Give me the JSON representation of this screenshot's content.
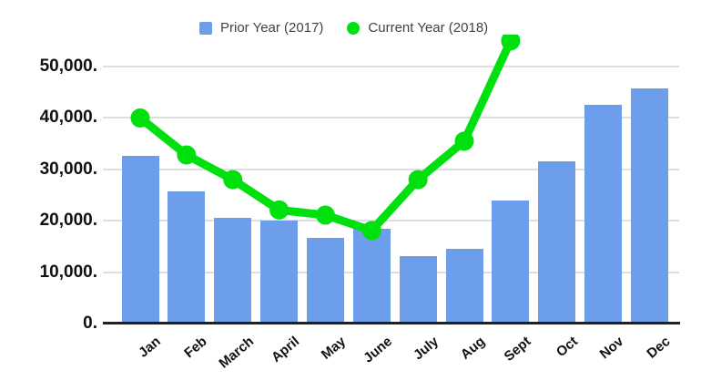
{
  "chart_data": {
    "type": "combo-bar-line",
    "title": "",
    "categories": [
      "Jan",
      "Feb",
      "March",
      "April",
      "May",
      "June",
      "July",
      "Aug",
      "Sept",
      "Oct",
      "Nov",
      "Dec"
    ],
    "series": [
      {
        "name": "Prior Year (2017)",
        "type": "bar",
        "color": "#6d9eeb",
        "values": [
          32700,
          25700,
          20500,
          20000,
          16600,
          18500,
          13200,
          14500,
          24000,
          31600,
          42500,
          45700
        ]
      },
      {
        "name": "Current Year (2018)",
        "type": "line",
        "color": "#00e00e",
        "marker": "circle",
        "values": [
          40000,
          32800,
          28000,
          22100,
          21100,
          18100,
          28000,
          35500,
          55000,
          null,
          null,
          null
        ]
      }
    ],
    "ylim": [
      0,
      50000
    ],
    "yticks": [
      0,
      10000,
      20000,
      30000,
      40000,
      50000
    ],
    "ytick_labels": [
      "0.",
      "10,000.",
      "20,000.",
      "30,000.",
      "40,000.",
      "50,000."
    ],
    "grid": true,
    "legend_position": "top",
    "background_color": "#ffffff",
    "gridline_color": "#dedede",
    "axis_line_color": "#212121",
    "axis_text_color": "#111111",
    "legend_text_color": "#424242"
  }
}
